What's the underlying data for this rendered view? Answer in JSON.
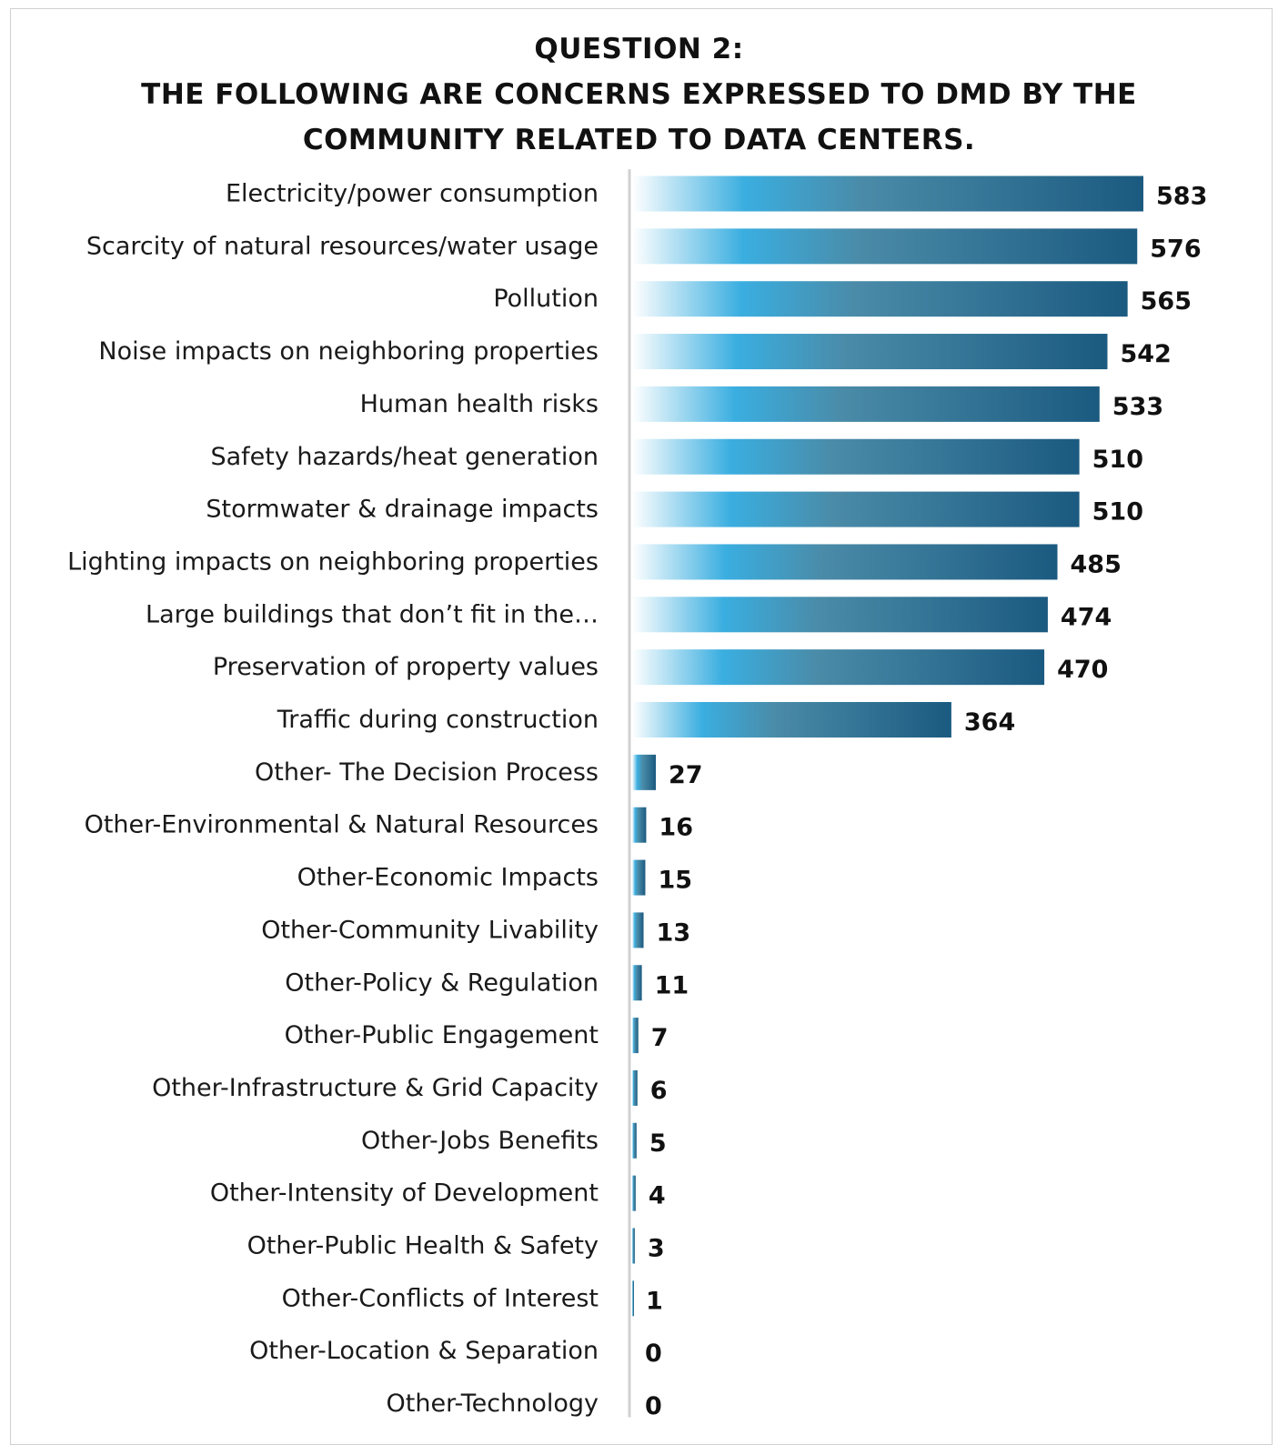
{
  "chart_data": {
    "type": "bar",
    "orientation": "horizontal",
    "title": [
      "QUESTION 2:",
      "THE FOLLOWING ARE CONCERNS EXPRESSED TO DMD BY THE",
      "COMMUNITY RELATED TO DATA CENTERS."
    ],
    "categories": [
      "Electricity/power consumption",
      "Scarcity of natural resources/water usage",
      "Pollution",
      "Noise impacts on neighboring properties",
      "Human health risks",
      "Safety hazards/heat generation",
      "Stormwater & drainage impacts",
      "Lighting impacts on neighboring properties",
      "Large buildings that don’t fit in the…",
      "Preservation of property values",
      "Traffic during construction",
      "Other- The Decision Process",
      "Other-Environmental & Natural Resources",
      "Other-Economic Impacts",
      "Other-Community Livability",
      "Other-Policy & Regulation",
      "Other-Public Engagement",
      "Other-Infrastructure & Grid Capacity",
      "Other-Jobs  Benefits",
      "Other-Intensity of Development",
      "Other-Public Health & Safety",
      "Other-Conflicts of Interest",
      "Other-Location & Separation",
      "Other-Technology"
    ],
    "values": [
      583,
      576,
      565,
      542,
      533,
      510,
      510,
      485,
      474,
      470,
      364,
      27,
      16,
      15,
      13,
      11,
      7,
      6,
      5,
      4,
      3,
      1,
      0,
      0
    ],
    "xlim": [
      0,
      583
    ],
    "grid": false,
    "legend": "none",
    "data_labels": true,
    "colors": {
      "bar_gradient": [
        "#ffffff",
        "#3aaee0",
        "#4a8ba8",
        "#1b5a80"
      ],
      "axis_line": "#d0d0d0"
    }
  }
}
